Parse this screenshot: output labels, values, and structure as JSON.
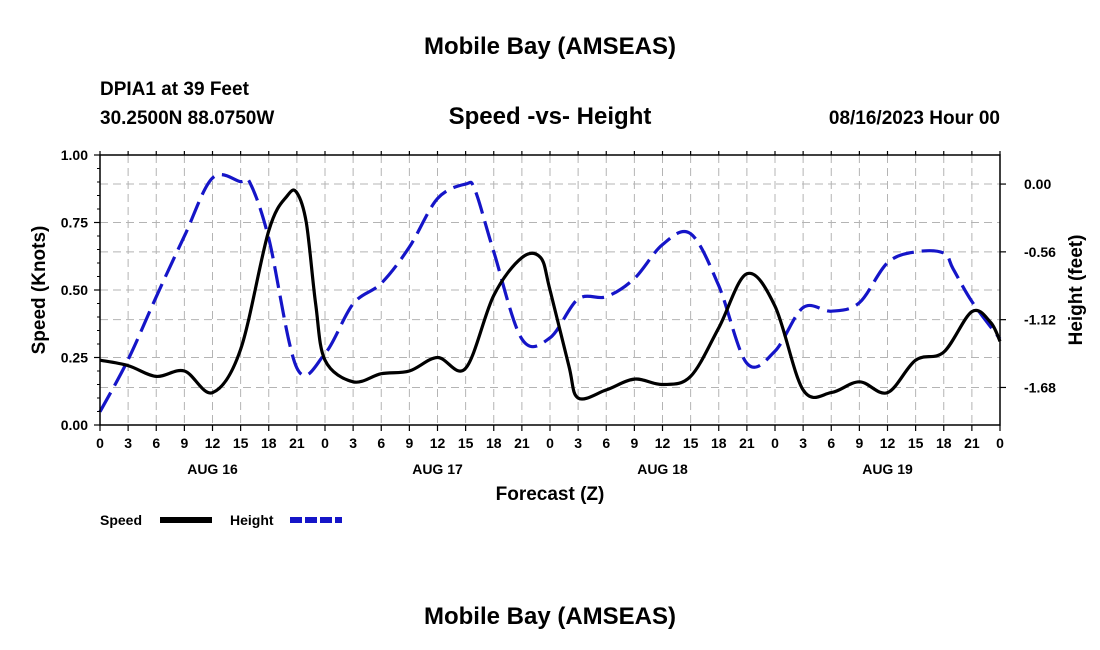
{
  "page": {
    "title_top": "Mobile Bay (AMSEAS)",
    "title_bottom": "Mobile Bay (AMSEAS)",
    "station_line1": "DPIA1 at 39 Feet",
    "station_line2": "30.2500N  88.0750W",
    "chart_title": "Speed -vs- Height",
    "date_label": "08/16/2023 Hour 00"
  },
  "chart_data": {
    "type": "line",
    "title": "Speed -vs- Height",
    "xlabel": "Forecast (Z)",
    "ylabel": "Speed (Knots)",
    "y2label": "Height (feet)",
    "x_unit": "forecast hours from 08/16/2023 00Z",
    "xlim": [
      0,
      96
    ],
    "ylim": [
      0,
      1.0
    ],
    "y2lim": [
      -1.99,
      0.24
    ],
    "x_ticks": [
      0,
      3,
      6,
      9,
      12,
      15,
      18,
      21,
      24,
      27,
      30,
      33,
      36,
      39,
      42,
      45,
      48,
      51,
      54,
      57,
      60,
      63,
      66,
      69,
      72,
      75,
      78,
      81,
      84,
      87,
      90,
      93,
      96
    ],
    "x_tick_labels": [
      "0",
      "3",
      "6",
      "9",
      "12",
      "15",
      "18",
      "21",
      "0",
      "3",
      "6",
      "9",
      "12",
      "15",
      "18",
      "21",
      "0",
      "3",
      "6",
      "9",
      "12",
      "15",
      "18",
      "21",
      "0",
      "3",
      "6",
      "9",
      "12",
      "15",
      "18",
      "21",
      "0"
    ],
    "day_labels": [
      {
        "x": 12,
        "label": "AUG 16"
      },
      {
        "x": 36,
        "label": "AUG 17"
      },
      {
        "x": 60,
        "label": "AUG 18"
      },
      {
        "x": 84,
        "label": "AUG 19"
      }
    ],
    "y_ticks": [
      0,
      0.25,
      0.5,
      0.75,
      1.0
    ],
    "y_tick_labels": [
      "0.00",
      "0.25",
      "0.50",
      "0.75",
      "1.00"
    ],
    "y2_ticks": [
      0.0,
      -0.56,
      -1.12,
      -1.68
    ],
    "y2_tick_labels": [
      "0.00",
      "-0.56",
      "-1.12",
      "-1.68"
    ],
    "legend": [
      {
        "label": "Speed",
        "color": "#000000",
        "style": "solid"
      },
      {
        "label": "Height",
        "color": "#1515c8",
        "style": "dashed"
      }
    ],
    "series": [
      {
        "name": "Speed",
        "axis": "left",
        "color": "#000000",
        "x": [
          0,
          3,
          6,
          9,
          12,
          15,
          18,
          20,
          21,
          22,
          23,
          24,
          27,
          30,
          33,
          36,
          39,
          42,
          45,
          47,
          48,
          50,
          51,
          54,
          57,
          60,
          63,
          66,
          69,
          72,
          75,
          78,
          81,
          84,
          87,
          90,
          93,
          95,
          96
        ],
        "values": [
          0.24,
          0.22,
          0.18,
          0.2,
          0.12,
          0.28,
          0.72,
          0.85,
          0.86,
          0.75,
          0.45,
          0.24,
          0.16,
          0.19,
          0.2,
          0.25,
          0.21,
          0.48,
          0.62,
          0.62,
          0.5,
          0.22,
          0.1,
          0.13,
          0.17,
          0.15,
          0.18,
          0.36,
          0.56,
          0.44,
          0.13,
          0.12,
          0.16,
          0.12,
          0.24,
          0.27,
          0.42,
          0.38,
          0.31
        ]
      },
      {
        "name": "Height",
        "axis": "right",
        "color": "#1515c8",
        "x": [
          0,
          3,
          6,
          9,
          12,
          15,
          16,
          18,
          21,
          24,
          27,
          30,
          33,
          36,
          39,
          40,
          42,
          45,
          48,
          51,
          54,
          57,
          60,
          63,
          66,
          69,
          72,
          75,
          78,
          81,
          84,
          87,
          90,
          91,
          93,
          96
        ],
        "values": [
          -1.88,
          -1.45,
          -0.93,
          -0.43,
          0.05,
          0.02,
          0.01,
          -0.45,
          -1.52,
          -1.4,
          -0.99,
          -0.82,
          -0.52,
          -0.12,
          0.0,
          -0.05,
          -0.56,
          -1.28,
          -1.27,
          -0.95,
          -0.93,
          -0.78,
          -0.5,
          -0.41,
          -0.84,
          -1.48,
          -1.38,
          -1.02,
          -1.05,
          -0.98,
          -0.65,
          -0.56,
          -0.57,
          -0.7,
          -0.97,
          -1.28
        ]
      }
    ]
  }
}
